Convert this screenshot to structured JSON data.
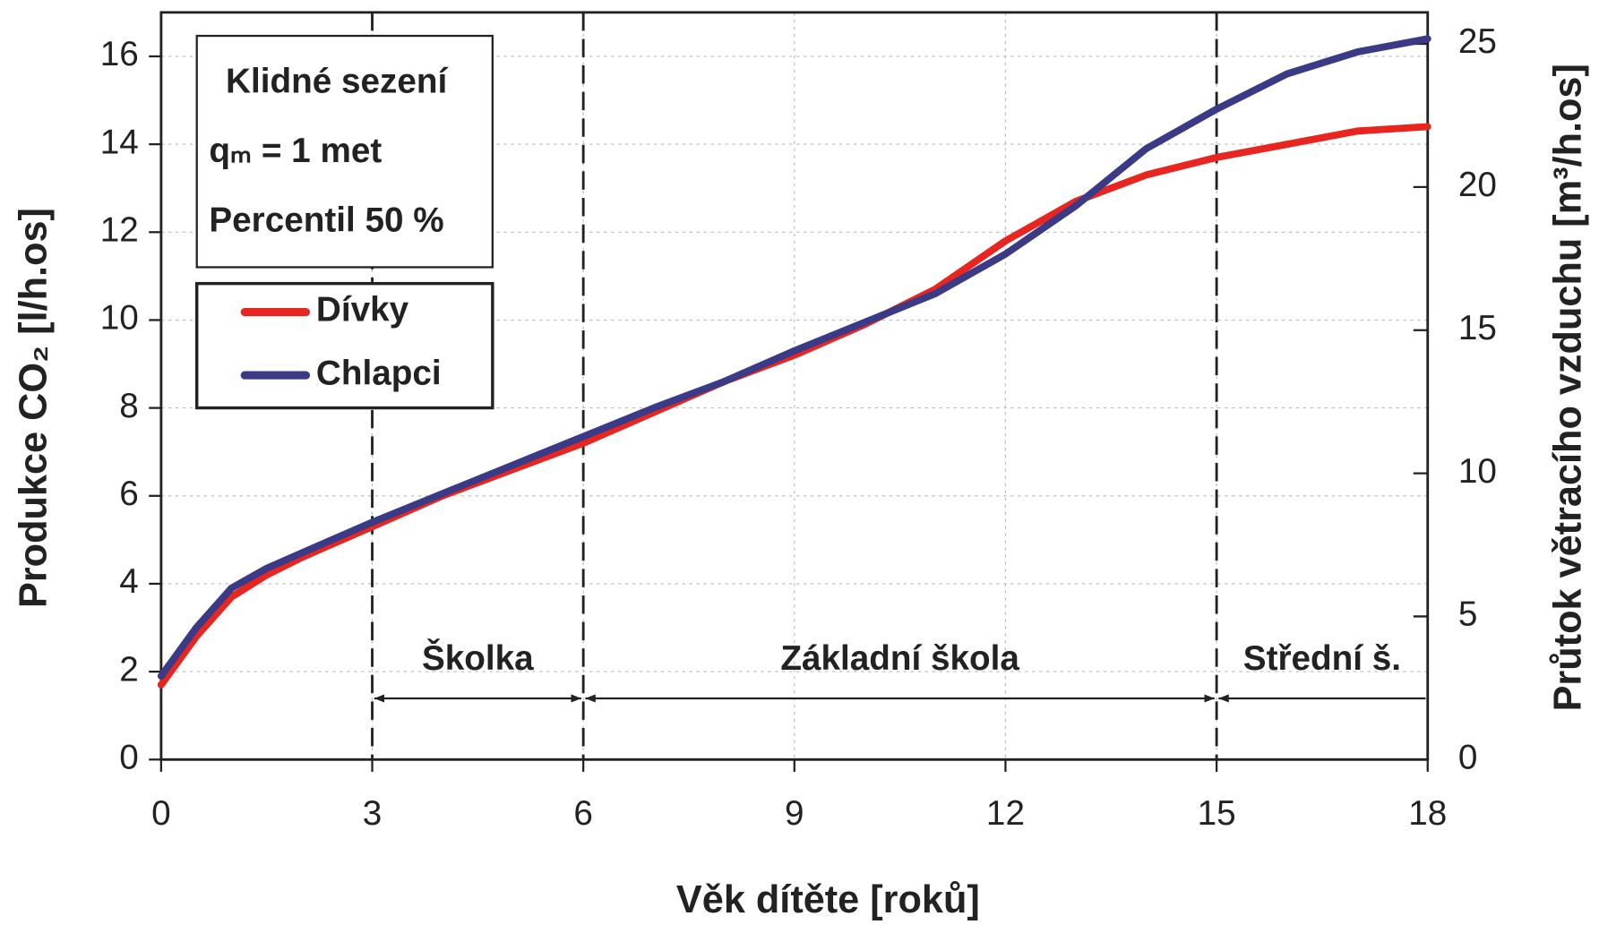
{
  "chart_data": {
    "type": "line",
    "xlabel": "Věk dítěte [roků]",
    "ylabel": "Produkce CO₂ [l/h.os]",
    "y2label": "Průtok větracího vzduchu [m³/h.os]",
    "x": [
      0,
      0.5,
      1,
      1.5,
      2,
      3,
      4,
      5,
      6,
      7,
      8,
      9,
      10,
      11,
      12,
      13,
      14,
      15,
      16,
      17,
      18
    ],
    "series": [
      {
        "name": "Dívky",
        "color": "#e8251f",
        "values": [
          1.7,
          2.8,
          3.7,
          4.2,
          4.6,
          5.3,
          6.0,
          6.6,
          7.2,
          7.9,
          8.6,
          9.2,
          9.9,
          10.7,
          11.8,
          12.7,
          13.3,
          13.7,
          14.0,
          14.3,
          14.4
        ]
      },
      {
        "name": "Chlapci",
        "color": "#3a3a86",
        "values": [
          1.9,
          3.0,
          3.9,
          4.35,
          4.7,
          5.4,
          6.05,
          6.7,
          7.35,
          8.0,
          8.6,
          9.3,
          9.95,
          10.6,
          11.5,
          12.6,
          13.9,
          14.8,
          15.6,
          16.1,
          16.4
        ]
      }
    ],
    "xlim": [
      0,
      18
    ],
    "xticks": [
      0,
      3,
      6,
      9,
      12,
      15,
      18
    ],
    "ylim": [
      0,
      17
    ],
    "yticks": [
      0,
      2,
      4,
      6,
      8,
      10,
      12,
      14,
      16
    ],
    "y2lim": [
      0,
      26.1
    ],
    "y2ticks": [
      0,
      5,
      10,
      15,
      20,
      25
    ],
    "grid": true,
    "info_box": [
      "Klidné sezení",
      "qₘ = 1 met",
      "Percentil 50 %"
    ],
    "dividers": [
      3,
      6,
      15
    ],
    "periods": [
      {
        "label": "Školka",
        "from": 3,
        "to": 6
      },
      {
        "label": "Základní škola",
        "from": 6,
        "to": 15
      },
      {
        "label": "Střední š.",
        "from": 15,
        "to": 18
      }
    ]
  }
}
